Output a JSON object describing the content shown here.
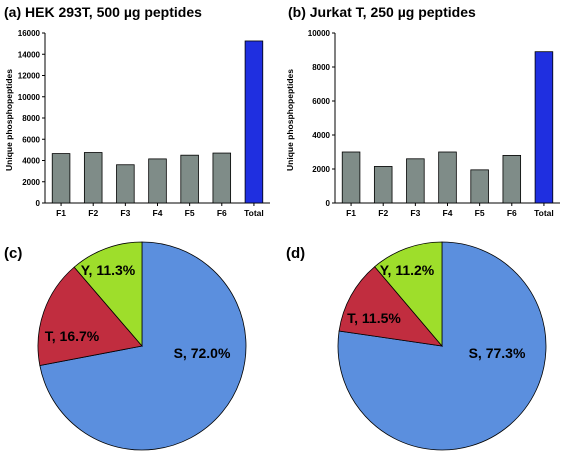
{
  "panels": [
    "(c)",
    "(d)"
  ],
  "chart_data": [
    {
      "type": "bar",
      "title": "(a) HEK 293T, 500 µg peptides",
      "ylabel": "Unique phosphopeptides",
      "categories": [
        "F1",
        "F2",
        "F3",
        "F4",
        "F5",
        "F6",
        "Total"
      ],
      "values": [
        4650,
        4750,
        3600,
        4150,
        4500,
        4700,
        15250
      ],
      "ylim": [
        0,
        16000
      ],
      "yticks": [
        "0",
        "2000",
        "4000",
        "6000",
        "8000",
        "10000",
        "12000",
        "14000",
        "16000"
      ],
      "bar_color": "#7f8c88",
      "highlight_color": "#1f2fe0"
    },
    {
      "type": "bar",
      "title": "(b) Jurkat T, 250 µg peptides",
      "ylabel": "Unique phosphopeptides",
      "categories": [
        "F1",
        "F2",
        "F3",
        "F4",
        "F5",
        "F6",
        "Total"
      ],
      "values": [
        3000,
        2150,
        2600,
        3000,
        1950,
        2800,
        8900
      ],
      "ylim": [
        0,
        10000
      ],
      "yticks": [
        "0",
        "2000",
        "4000",
        "6000",
        "8000",
        "10000"
      ],
      "bar_color": "#7f8c88",
      "highlight_color": "#1f2fe0"
    },
    {
      "type": "pie",
      "slices": [
        {
          "label": "S, 72.0%",
          "value": 72.0,
          "color": "#5b8fde"
        },
        {
          "label": "T, 16.7%",
          "value": 16.7,
          "color": "#c12d3f"
        },
        {
          "label": "Y, 11.3%",
          "value": 11.3,
          "color": "#9ede2b"
        }
      ]
    },
    {
      "type": "pie",
      "slices": [
        {
          "label": "S, 77.3%",
          "value": 77.3,
          "color": "#5b8fde"
        },
        {
          "label": "T, 11.5%",
          "value": 11.5,
          "color": "#c12d3f"
        },
        {
          "label": "Y, 11.2%",
          "value": 11.2,
          "color": "#9ede2b"
        }
      ]
    }
  ]
}
